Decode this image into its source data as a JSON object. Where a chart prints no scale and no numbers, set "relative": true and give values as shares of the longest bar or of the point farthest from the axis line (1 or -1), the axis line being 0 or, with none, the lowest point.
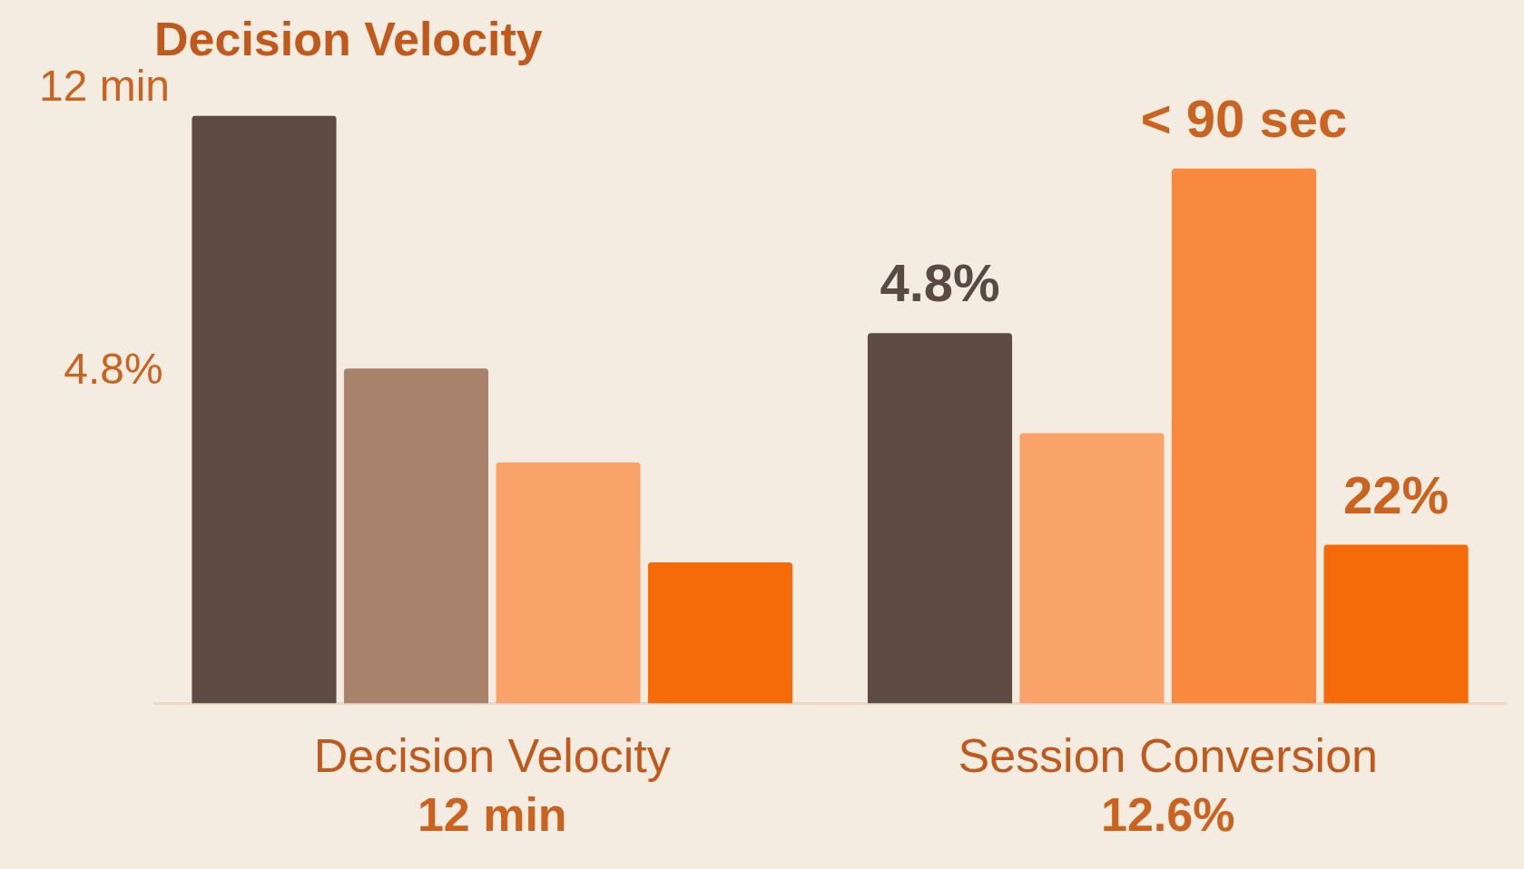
{
  "chart_data": {
    "type": "bar",
    "title": "Decision Velocity",
    "relative": true,
    "categories": [
      "Decision Velocity",
      "Session Conversion"
    ],
    "series": [
      {
        "colors": [
          "#5e4c44",
          "#5e4c44"
        ],
        "values": [
          1,
          0.63
        ]
      },
      {
        "colors": [
          "#a8826a",
          "#f9a36a"
        ],
        "values": [
          0.57,
          0.46
        ]
      },
      {
        "colors": [
          "#f9a36a",
          "#f8893e"
        ],
        "values": [
          0.41,
          0.91
        ]
      },
      {
        "colors": [
          "#f56b0a",
          "#f56b0a"
        ],
        "values": [
          0.24,
          0.27
        ]
      }
    ],
    "annotations": [
      "12 min",
      "4.8%",
      "12 min",
      "12.6%",
      "4.8%",
      "< 90 sec",
      "22%"
    ],
    "grid": false,
    "legend": false
  }
}
